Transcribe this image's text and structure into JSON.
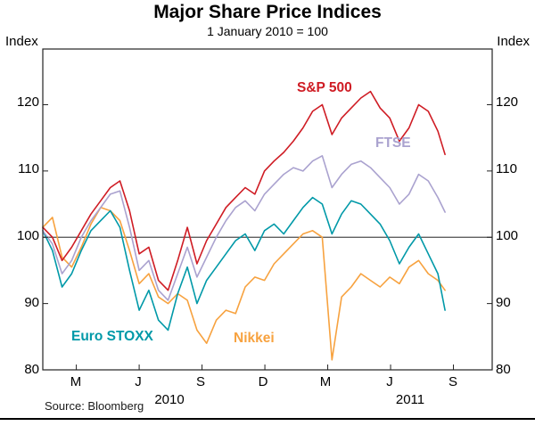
{
  "header": {
    "title": "Major Share Price Indices",
    "subtitle": "1 January 2010 = 100"
  },
  "axis": {
    "left_unit": "Index",
    "right_unit": "Index",
    "y_ticks": [
      80,
      90,
      100,
      110,
      120
    ],
    "x_tick_labels": [
      "M",
      "J",
      "S",
      "D",
      "M",
      "J",
      "S"
    ],
    "x_tick_months": [
      2,
      5,
      8,
      11,
      14,
      17,
      20
    ],
    "year_labels": [
      "2010",
      "2011"
    ],
    "ylim": [
      80,
      128.4
    ],
    "xlim_months": [
      0.4,
      21.85
    ],
    "baseline_value": 100
  },
  "footer": {
    "source": "Source: Bloomberg"
  },
  "chart_data": {
    "type": "line",
    "title": "Major Share Price Indices",
    "subtitle": "1 January 2010 = 100",
    "xlabel": "",
    "ylabel": "Index",
    "x_unit": "months since 1 January 2010 (0 = 1 Jan 2010)",
    "ylim": [
      80,
      120
    ],
    "grid": false,
    "legend_position": "inline-annotations",
    "x": [
      0.4,
      0.86,
      1.32,
      1.78,
      2.24,
      2.7,
      3.16,
      3.62,
      4.08,
      4.54,
      5.0,
      5.46,
      5.92,
      6.38,
      6.84,
      7.3,
      7.76,
      8.22,
      8.68,
      9.14,
      9.6,
      10.06,
      10.52,
      10.98,
      11.44,
      11.9,
      12.36,
      12.82,
      13.28,
      13.74,
      14.2,
      14.66,
      15.12,
      15.58,
      16.04,
      16.5,
      16.96,
      17.42,
      17.88,
      18.34,
      18.8,
      19.26,
      19.6
    ],
    "series": [
      {
        "name": "S&P 500",
        "color": "#cf1c24",
        "values": [
          101.5,
          100.0,
          96.5,
          98.5,
          101.0,
          103.5,
          105.5,
          107.5,
          108.5,
          104.0,
          97.5,
          98.5,
          93.5,
          92.0,
          96.5,
          101.5,
          96.0,
          99.5,
          102.0,
          104.5,
          106.0,
          107.5,
          106.5,
          110.0,
          111.5,
          112.8,
          114.5,
          116.5,
          119.0,
          120.0,
          115.5,
          118.0,
          119.5,
          121.0,
          122.0,
          119.5,
          118.0,
          114.5,
          116.5,
          120.0,
          119.0,
          116.0,
          112.5
        ]
      },
      {
        "name": "FTSE",
        "color": "#aaa2cf",
        "values": [
          101.0,
          99.0,
          94.5,
          96.5,
          100.0,
          102.5,
          104.5,
          106.5,
          107.0,
          101.5,
          95.0,
          96.5,
          92.0,
          90.5,
          94.5,
          98.5,
          94.0,
          97.0,
          100.0,
          102.5,
          104.5,
          105.5,
          104.0,
          106.5,
          108.0,
          109.5,
          110.5,
          110.0,
          111.5,
          112.3,
          107.5,
          109.5,
          111.0,
          111.5,
          110.5,
          109.0,
          107.5,
          105.0,
          106.5,
          109.5,
          108.5,
          106.0,
          103.8
        ]
      },
      {
        "name": "Euro STOXX",
        "color": "#0099a8",
        "values": [
          101.0,
          98.0,
          92.5,
          94.5,
          98.0,
          101.0,
          102.5,
          104.0,
          101.5,
          95.0,
          89.0,
          92.0,
          87.5,
          86.0,
          91.5,
          95.5,
          90.0,
          93.5,
          95.5,
          97.5,
          99.5,
          100.5,
          98.0,
          101.0,
          102.0,
          100.5,
          102.5,
          104.5,
          106.0,
          105.0,
          100.5,
          103.5,
          105.5,
          105.0,
          103.5,
          102.0,
          99.5,
          96.0,
          98.5,
          100.5,
          97.5,
          94.5,
          89.0
        ]
      },
      {
        "name": "Nikkei",
        "color": "#f7a23f",
        "values": [
          101.5,
          103.0,
          97.0,
          95.5,
          98.5,
          102.0,
          104.5,
          104.0,
          102.5,
          98.0,
          93.0,
          94.5,
          91.0,
          90.0,
          91.5,
          90.5,
          86.0,
          84.0,
          87.5,
          89.0,
          88.5,
          92.5,
          94.0,
          93.5,
          96.0,
          97.5,
          99.0,
          100.5,
          101.0,
          100.0,
          81.5,
          91.0,
          92.5,
          94.5,
          93.5,
          92.5,
          94.0,
          93.0,
          95.5,
          96.5,
          94.5,
          93.5,
          92.0
        ]
      }
    ]
  }
}
